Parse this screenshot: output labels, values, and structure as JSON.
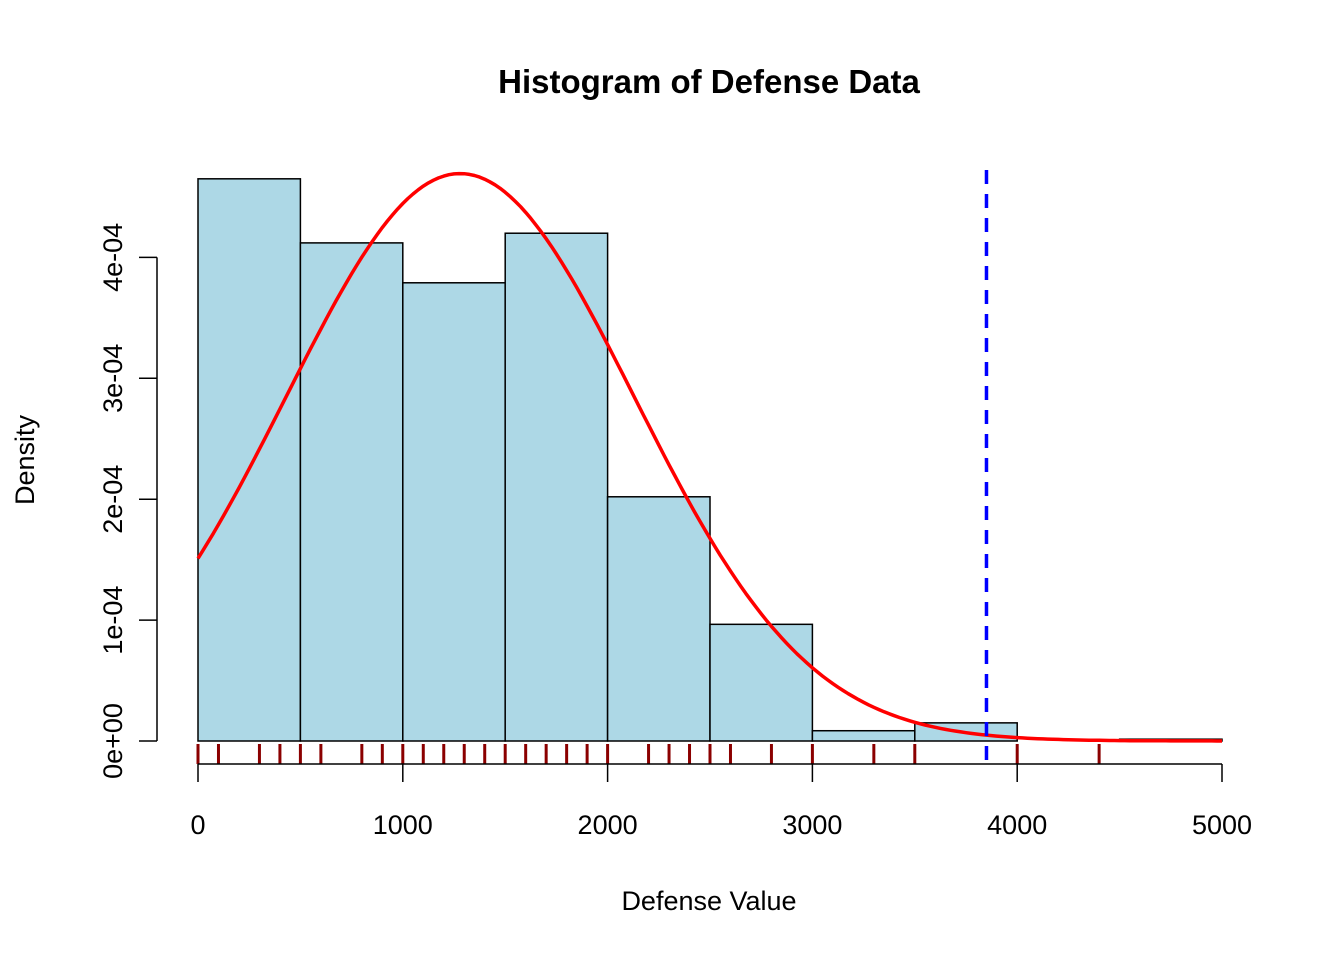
{
  "chart_data": {
    "type": "histogram",
    "title": "Histogram of Defense Data",
    "xlabel": "Defense Value",
    "ylabel": "Density",
    "xlim": [
      0,
      5000
    ],
    "ylim": [
      0,
      0.00048
    ],
    "bin_width": 500,
    "bins": [
      {
        "start": 0,
        "end": 500,
        "density": 0.000465
      },
      {
        "start": 500,
        "end": 1000,
        "density": 0.000412
      },
      {
        "start": 1000,
        "end": 1500,
        "density": 0.000379
      },
      {
        "start": 1500,
        "end": 2000,
        "density": 0.00042
      },
      {
        "start": 2000,
        "end": 2500,
        "density": 0.000202
      },
      {
        "start": 2500,
        "end": 3000,
        "density": 9.65e-05
      },
      {
        "start": 3000,
        "end": 3500,
        "density": 8.5e-06
      },
      {
        "start": 3500,
        "end": 4000,
        "density": 1.5e-05
      },
      {
        "start": 4000,
        "end": 4500,
        "density": 0
      },
      {
        "start": 4500,
        "end": 5000,
        "density": 1.5e-06
      }
    ],
    "x_ticks": [
      0,
      1000,
      2000,
      3000,
      4000,
      5000
    ],
    "x_tick_labels": [
      "0",
      "1000",
      "2000",
      "3000",
      "4000",
      "5000"
    ],
    "y_ticks": [
      0,
      0.0001,
      0.0002,
      0.0003,
      0.0004
    ],
    "y_tick_labels": [
      "0e+00",
      "1e-04",
      "2e-04",
      "3e-04",
      "4e-04"
    ],
    "normal_curve": {
      "mean": 1280,
      "sd": 850,
      "color": "#ff0000"
    },
    "vertical_line": {
      "x": 3850,
      "color": "#0000ff",
      "style": "dashed"
    },
    "rug": [
      0,
      100,
      300,
      400,
      500,
      600,
      800,
      900,
      1000,
      1100,
      1200,
      1300,
      1400,
      1500,
      1600,
      1700,
      1800,
      1900,
      2000,
      2200,
      2300,
      2400,
      2500,
      2600,
      2800,
      3000,
      3300,
      3500,
      4000,
      4400
    ],
    "colors": {
      "bar_fill": "#add8e6",
      "bar_border": "#000000",
      "rug": "#8b0000"
    }
  }
}
